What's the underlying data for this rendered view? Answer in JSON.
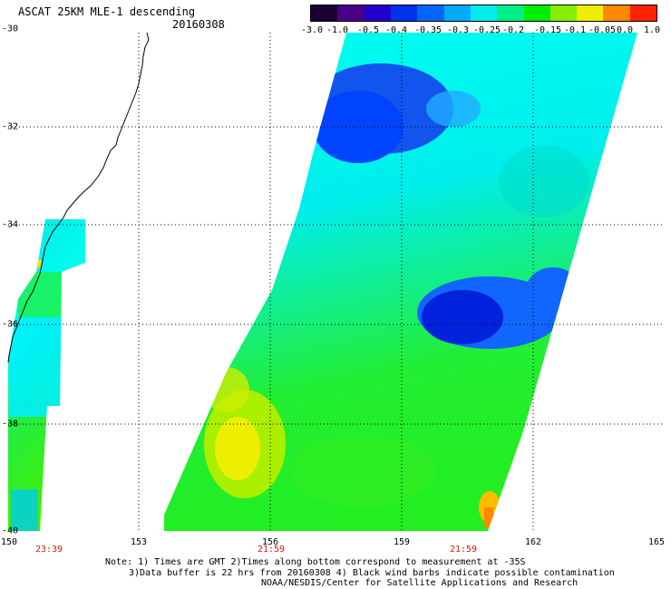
{
  "header": {
    "title": "ASCAT 25KM MLE-1 descending",
    "date": "20160308"
  },
  "colorbar": {
    "labels": [
      "-3.0",
      "-1.0",
      "-0.5",
      "-0.4",
      "-0.35",
      "-0.3",
      "-0.25",
      "-0.2",
      "-0.15",
      "-0.1",
      "-0.05",
      "0.0",
      "1.0"
    ],
    "colors": [
      "#1a0033",
      "#4a0088",
      "#2200cc",
      "#0033ee",
      "#0066ff",
      "#00aaff",
      "#00eeee",
      "#00ee88",
      "#00ee00",
      "#88ee00",
      "#eeee00",
      "#ff8800",
      "#ff2200",
      "#ff0000"
    ]
  },
  "map": {
    "lat_labels": [
      "-30",
      "-32",
      "-34",
      "-36",
      "-38",
      "-40"
    ],
    "lon_labels": [
      "150",
      "153",
      "156",
      "159",
      "162",
      "165"
    ],
    "times": [
      "23:39",
      "21:59",
      "21:59"
    ]
  },
  "notes": {
    "line1": "Note: 1) Times are GMT 2)Times along bottom correspond to measurement at -35S",
    "line2": "3)Data buffer is 22 hrs from 20160308 4) Black wind barbs indicate possible contamination",
    "line3": "NOAA/NESDIS/Center for Satellite Applications and Research"
  }
}
